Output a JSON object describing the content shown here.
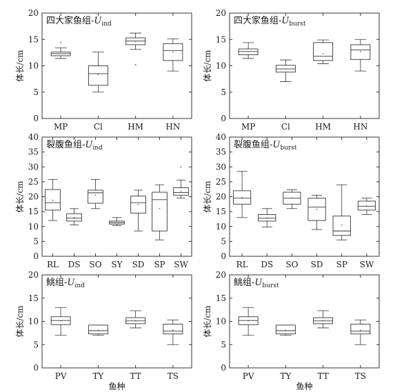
{
  "xlabel_shared": "鱼种",
  "ylabel_shared": "体长/cm",
  "chart_data": [
    {
      "type": "boxplot",
      "title": "四大家鱼组-",
      "title_var": "U",
      "title_sub": "ind",
      "ylabel": "体长/cm",
      "xlabel": "",
      "ylim": [
        0,
        20
      ],
      "yticks": [
        0,
        5,
        10,
        15,
        20
      ],
      "categories": [
        "MP",
        "Cl",
        "HM",
        "HN"
      ],
      "boxes": [
        {
          "min": 11.4,
          "q1": 11.9,
          "median": 12.3,
          "q3": 12.6,
          "max": 13.4,
          "mean": 12.3,
          "outliers": [
            14.4
          ]
        },
        {
          "min": 5.0,
          "q1": 6.3,
          "median": 8.5,
          "q3": 10.0,
          "max": 12.6,
          "mean": 8.3,
          "outliers": []
        },
        {
          "min": 13.1,
          "q1": 14.0,
          "median": 14.7,
          "q3": 15.3,
          "max": 16.2,
          "mean": 14.6,
          "outliers": [
            10.2
          ]
        },
        {
          "min": 9.0,
          "q1": 11.0,
          "median": 12.9,
          "q3": 14.2,
          "max": 15.1,
          "mean": 12.6,
          "outliers": []
        }
      ]
    },
    {
      "type": "boxplot",
      "title": "四大家鱼组-",
      "title_var": "U",
      "title_sub": "burst",
      "ylabel": "体长/cm",
      "xlabel": "",
      "ylim": [
        0,
        20
      ],
      "yticks": [
        0,
        5,
        10,
        15,
        20
      ],
      "categories": [
        "MP",
        "Cl",
        "HM",
        "HN"
      ],
      "boxes": [
        {
          "min": 11.4,
          "q1": 12.1,
          "median": 12.7,
          "q3": 13.2,
          "max": 14.4,
          "mean": 12.7,
          "outliers": []
        },
        {
          "min": 7.0,
          "q1": 8.8,
          "median": 9.4,
          "q3": 10.1,
          "max": 11.1,
          "mean": 9.4,
          "outliers": []
        },
        {
          "min": 10.4,
          "q1": 11.0,
          "median": 11.8,
          "q3": 14.4,
          "max": 14.9,
          "mean": 12.3,
          "outliers": []
        },
        {
          "min": 9.0,
          "q1": 11.2,
          "median": 13.0,
          "q3": 14.0,
          "max": 15.0,
          "mean": 12.7,
          "outliers": []
        }
      ]
    },
    {
      "type": "boxplot",
      "title": "裂腹鱼组-",
      "title_var": "U",
      "title_sub": "ind",
      "ylabel": "体长/cm",
      "xlabel": "",
      "ylim": [
        0,
        40
      ],
      "yticks": [
        0,
        5,
        10,
        15,
        20,
        25,
        30,
        35,
        40
      ],
      "categories": [
        "RL",
        "DS",
        "SO",
        "SY",
        "SD",
        "SP",
        "SW"
      ],
      "boxes": [
        {
          "min": 12.0,
          "q1": 15.5,
          "median": 18.0,
          "q3": 22.4,
          "max": 25.8,
          "mean": 18.8,
          "outliers": []
        },
        {
          "min": 10.5,
          "q1": 11.8,
          "median": 12.8,
          "q3": 14.3,
          "max": 16.0,
          "mean": 13.0,
          "outliers": []
        },
        {
          "min": 16.0,
          "q1": 17.8,
          "median": 21.3,
          "q3": 22.2,
          "max": 25.8,
          "mean": 20.5,
          "outliers": []
        },
        {
          "min": 10.3,
          "q1": 10.8,
          "median": 11.3,
          "q3": 11.8,
          "max": 13.0,
          "mean": 11.3,
          "outliers": []
        },
        {
          "min": 8.5,
          "q1": 14.5,
          "median": 18.0,
          "q3": 20.2,
          "max": 22.2,
          "mean": 17.4,
          "outliers": []
        },
        {
          "min": 5.5,
          "q1": 8.5,
          "median": 19.0,
          "q3": 21.5,
          "max": 24.0,
          "mean": 16.0,
          "outliers": []
        },
        {
          "min": 19.5,
          "q1": 20.5,
          "median": 21.4,
          "q3": 23.0,
          "max": 25.6,
          "mean": 21.8,
          "outliers": [
            30.0
          ]
        }
      ]
    },
    {
      "type": "boxplot",
      "title": "裂腹鱼组-",
      "title_var": "U",
      "title_sub": "burst",
      "ylabel": "体长/cm",
      "xlabel": "",
      "ylim": [
        0,
        40
      ],
      "yticks": [
        0,
        5,
        10,
        15,
        20,
        25,
        30,
        35,
        40
      ],
      "categories": [
        "RL",
        "DS",
        "SO",
        "SD",
        "SP",
        "SW"
      ],
      "boxes": [
        {
          "min": 13.0,
          "q1": 17.5,
          "median": 19.5,
          "q3": 22.0,
          "max": 28.5,
          "mean": 19.8,
          "outliers": []
        },
        {
          "min": 9.8,
          "q1": 11.8,
          "median": 12.8,
          "q3": 14.0,
          "max": 16.0,
          "mean": 12.9,
          "outliers": []
        },
        {
          "min": 16.0,
          "q1": 17.5,
          "median": 19.5,
          "q3": 21.5,
          "max": 22.3,
          "mean": 19.6,
          "outliers": []
        },
        {
          "min": 9.0,
          "q1": 12.0,
          "median": 16.5,
          "q3": 19.5,
          "max": 20.5,
          "mean": 15.8,
          "outliers": []
        },
        {
          "min": 5.5,
          "q1": 7.0,
          "median": 8.5,
          "q3": 13.5,
          "max": 24.0,
          "mean": 10.5,
          "outliers": []
        },
        {
          "min": 14.0,
          "q1": 15.5,
          "median": 16.8,
          "q3": 18.5,
          "max": 19.5,
          "mean": 16.9,
          "outliers": []
        }
      ]
    },
    {
      "type": "boxplot",
      "title": "鮡组-",
      "title_var": "U",
      "title_sub": "ind",
      "ylabel": "体长/cm",
      "xlabel": "鱼种",
      "ylim": [
        0,
        20
      ],
      "yticks": [
        0,
        5,
        10,
        15,
        20
      ],
      "categories": [
        "PV",
        "TY",
        "TT",
        "TS"
      ],
      "boxes": [
        {
          "min": 7.0,
          "q1": 9.3,
          "median": 10.2,
          "q3": 11.0,
          "max": 13.0,
          "mean": 10.1,
          "outliers": []
        },
        {
          "min": 7.0,
          "q1": 7.3,
          "median": 8.0,
          "q3": 9.2,
          "max": 9.2,
          "mean": 8.1,
          "outliers": []
        },
        {
          "min": 8.6,
          "q1": 9.5,
          "median": 10.1,
          "q3": 10.8,
          "max": 12.3,
          "mean": 10.2,
          "outliers": []
        },
        {
          "min": 5.0,
          "q1": 7.3,
          "median": 7.9,
          "q3": 9.4,
          "max": 10.3,
          "mean": 8.1,
          "outliers": []
        }
      ]
    },
    {
      "type": "boxplot",
      "title": "鮡组-",
      "title_var": "U",
      "title_sub": "burst",
      "ylabel": "体长/cm",
      "xlabel": "鱼种",
      "ylim": [
        0,
        20
      ],
      "yticks": [
        0,
        5,
        10,
        15,
        20
      ],
      "categories": [
        "PV",
        "TY",
        "TT",
        "TS"
      ],
      "boxes": [
        {
          "min": 7.0,
          "q1": 9.3,
          "median": 10.2,
          "q3": 11.0,
          "max": 13.0,
          "mean": 10.1,
          "outliers": []
        },
        {
          "min": 7.0,
          "q1": 7.3,
          "median": 8.0,
          "q3": 9.2,
          "max": 9.2,
          "mean": 8.1,
          "outliers": []
        },
        {
          "min": 8.6,
          "q1": 9.5,
          "median": 10.1,
          "q3": 10.8,
          "max": 12.3,
          "mean": 10.2,
          "outliers": []
        },
        {
          "min": 5.0,
          "q1": 7.3,
          "median": 7.9,
          "q3": 9.4,
          "max": 10.3,
          "mean": 8.1,
          "outliers": []
        }
      ]
    }
  ]
}
